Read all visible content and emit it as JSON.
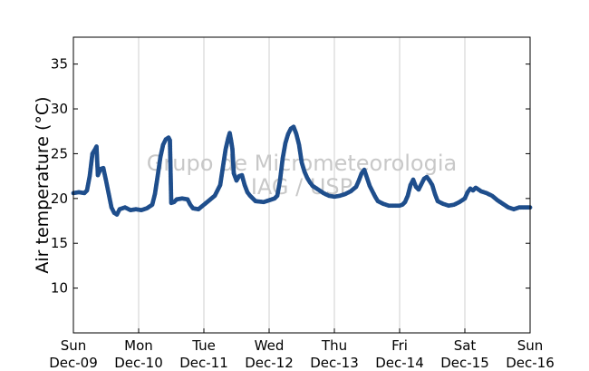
{
  "chart_data": {
    "type": "scatter",
    "ylabel": "Air temperature (°C)",
    "ylim": [
      5,
      38
    ],
    "yticks": [
      10,
      15,
      20,
      25,
      30,
      35
    ],
    "xlim": [
      "2012-12-09",
      "2012-12-16"
    ],
    "xticks": [
      {
        "date": "2012-12-09",
        "day": "Sun",
        "label": "Dec-09"
      },
      {
        "date": "2012-12-10",
        "day": "Mon",
        "label": "Dec-10"
      },
      {
        "date": "2012-12-11",
        "day": "Tue",
        "label": "Dec-11"
      },
      {
        "date": "2012-12-12",
        "day": "Wed",
        "label": "Dec-12"
      },
      {
        "date": "2012-12-13",
        "day": "Thu",
        "label": "Dec-13"
      },
      {
        "date": "2012-12-14",
        "day": "Fri",
        "label": "Dec-14"
      },
      {
        "date": "2012-12-15",
        "day": "Sat",
        "label": "Dec-15"
      },
      {
        "date": "2012-12-16",
        "day": "Sun",
        "label": "Dec-16"
      }
    ],
    "grid": "vertical",
    "marker_color": "#1f4e8c",
    "watermark": [
      "Grupo de Micrometeorologia",
      "IAG / USP"
    ],
    "series": [
      {
        "values": [
          [
            "2012-12-09 00:00",
            20.6
          ],
          [
            "2012-12-09 02:00",
            20.7
          ],
          [
            "2012-12-09 04:00",
            20.6
          ],
          [
            "2012-12-09 05:00",
            20.9
          ],
          [
            "2012-12-09 06:00",
            22.5
          ],
          [
            "2012-12-09 07:00",
            25.0
          ],
          [
            "2012-12-09 08:00",
            25.5
          ],
          [
            "2012-12-09 08:30",
            25.8
          ],
          [
            "2012-12-09 09:00",
            22.6
          ],
          [
            "2012-12-09 10:00",
            23.3
          ],
          [
            "2012-12-09 11:00",
            23.4
          ],
          [
            "2012-12-09 12:00",
            22.0
          ],
          [
            "2012-12-09 13:00",
            20.5
          ],
          [
            "2012-12-09 14:00",
            19.0
          ],
          [
            "2012-12-09 15:00",
            18.4
          ],
          [
            "2012-12-09 16:00",
            18.2
          ],
          [
            "2012-12-09 17:00",
            18.8
          ],
          [
            "2012-12-09 19:00",
            19.0
          ],
          [
            "2012-12-09 21:00",
            18.7
          ],
          [
            "2012-12-09 23:00",
            18.8
          ],
          [
            "2012-12-10 01:00",
            18.7
          ],
          [
            "2012-12-10 03:00",
            18.9
          ],
          [
            "2012-12-10 05:00",
            19.3
          ],
          [
            "2012-12-10 06:00",
            20.5
          ],
          [
            "2012-12-10 07:00",
            22.5
          ],
          [
            "2012-12-10 08:00",
            24.6
          ],
          [
            "2012-12-10 09:00",
            26.0
          ],
          [
            "2012-12-10 10:00",
            26.6
          ],
          [
            "2012-12-10 11:00",
            26.8
          ],
          [
            "2012-12-10 11:30",
            26.5
          ],
          [
            "2012-12-10 12:00",
            19.5
          ],
          [
            "2012-12-10 13:00",
            19.6
          ],
          [
            "2012-12-10 14:00",
            19.9
          ],
          [
            "2012-12-10 16:00",
            20.0
          ],
          [
            "2012-12-10 18:00",
            19.9
          ],
          [
            "2012-12-10 19:00",
            19.3
          ],
          [
            "2012-12-10 20:00",
            18.9
          ],
          [
            "2012-12-10 22:00",
            18.8
          ],
          [
            "2012-12-11 00:00",
            19.3
          ],
          [
            "2012-12-11 02:00",
            19.8
          ],
          [
            "2012-12-11 04:00",
            20.3
          ],
          [
            "2012-12-11 06:00",
            21.5
          ],
          [
            "2012-12-11 07:00",
            23.5
          ],
          [
            "2012-12-11 08:00",
            25.5
          ],
          [
            "2012-12-11 09:00",
            26.8
          ],
          [
            "2012-12-11 09:30",
            27.3
          ],
          [
            "2012-12-11 10:00",
            26.5
          ],
          [
            "2012-12-11 10:30",
            25.5
          ],
          [
            "2012-12-11 11:00",
            22.8
          ],
          [
            "2012-12-11 12:00",
            22.0
          ],
          [
            "2012-12-11 13:00",
            22.5
          ],
          [
            "2012-12-11 14:00",
            22.6
          ],
          [
            "2012-12-11 15:00",
            21.5
          ],
          [
            "2012-12-11 16:00",
            20.7
          ],
          [
            "2012-12-11 17:00",
            20.3
          ],
          [
            "2012-12-11 18:00",
            20.0
          ],
          [
            "2012-12-11 19:00",
            19.7
          ],
          [
            "2012-12-11 22:00",
            19.6
          ],
          [
            "2012-12-12 00:00",
            19.8
          ],
          [
            "2012-12-12 02:00",
            20.0
          ],
          [
            "2012-12-12 03:00",
            20.3
          ],
          [
            "2012-12-12 04:00",
            22.0
          ],
          [
            "2012-12-12 05:00",
            24.5
          ],
          [
            "2012-12-12 06:00",
            26.2
          ],
          [
            "2012-12-12 07:00",
            27.2
          ],
          [
            "2012-12-12 08:00",
            27.8
          ],
          [
            "2012-12-12 09:00",
            28.0
          ],
          [
            "2012-12-12 10:00",
            27.2
          ],
          [
            "2012-12-12 11:00",
            26.0
          ],
          [
            "2012-12-12 12:00",
            24.0
          ],
          [
            "2012-12-12 13:00",
            23.0
          ],
          [
            "2012-12-12 14:00",
            22.3
          ],
          [
            "2012-12-12 15:00",
            21.8
          ],
          [
            "2012-12-12 16:00",
            21.4
          ],
          [
            "2012-12-12 18:00",
            21.0
          ],
          [
            "2012-12-12 20:00",
            20.6
          ],
          [
            "2012-12-12 22:00",
            20.3
          ],
          [
            "2012-12-13 00:00",
            20.2
          ],
          [
            "2012-12-13 02:00",
            20.3
          ],
          [
            "2012-12-13 04:00",
            20.5
          ],
          [
            "2012-12-13 06:00",
            20.8
          ],
          [
            "2012-12-13 08:00",
            21.3
          ],
          [
            "2012-12-13 09:00",
            22.0
          ],
          [
            "2012-12-13 10:00",
            22.8
          ],
          [
            "2012-12-13 11:00",
            23.2
          ],
          [
            "2012-12-13 12:00",
            22.3
          ],
          [
            "2012-12-13 13:00",
            21.4
          ],
          [
            "2012-12-13 14:00",
            20.8
          ],
          [
            "2012-12-13 15:00",
            20.2
          ],
          [
            "2012-12-13 16:00",
            19.7
          ],
          [
            "2012-12-13 18:00",
            19.4
          ],
          [
            "2012-12-13 20:00",
            19.2
          ],
          [
            "2012-12-13 22:00",
            19.2
          ],
          [
            "2012-12-14 00:00",
            19.2
          ],
          [
            "2012-12-14 01:00",
            19.3
          ],
          [
            "2012-12-14 02:00",
            19.6
          ],
          [
            "2012-12-14 03:00",
            20.3
          ],
          [
            "2012-12-14 04:00",
            21.5
          ],
          [
            "2012-12-14 05:00",
            22.1
          ],
          [
            "2012-12-14 06:00",
            21.3
          ],
          [
            "2012-12-14 07:00",
            21.0
          ],
          [
            "2012-12-14 08:00",
            21.6
          ],
          [
            "2012-12-14 09:00",
            22.2
          ],
          [
            "2012-12-14 10:00",
            22.4
          ],
          [
            "2012-12-14 11:00",
            22.0
          ],
          [
            "2012-12-14 12:00",
            21.5
          ],
          [
            "2012-12-14 13:00",
            20.5
          ],
          [
            "2012-12-14 14:00",
            19.7
          ],
          [
            "2012-12-14 16:00",
            19.4
          ],
          [
            "2012-12-14 18:00",
            19.2
          ],
          [
            "2012-12-14 20:00",
            19.3
          ],
          [
            "2012-12-14 22:00",
            19.6
          ],
          [
            "2012-12-15 00:00",
            20.0
          ],
          [
            "2012-12-15 01:00",
            20.7
          ],
          [
            "2012-12-15 02:00",
            21.1
          ],
          [
            "2012-12-15 03:00",
            20.9
          ],
          [
            "2012-12-15 04:00",
            21.2
          ],
          [
            "2012-12-15 05:00",
            21.0
          ],
          [
            "2012-12-15 06:00",
            20.8
          ],
          [
            "2012-12-15 08:00",
            20.6
          ],
          [
            "2012-12-15 10:00",
            20.3
          ],
          [
            "2012-12-15 12:00",
            19.8
          ],
          [
            "2012-12-15 14:00",
            19.4
          ],
          [
            "2012-12-15 16:00",
            19.0
          ],
          [
            "2012-12-15 18:00",
            18.8
          ],
          [
            "2012-12-15 20:00",
            19.0
          ],
          [
            "2012-12-15 22:00",
            19.0
          ],
          [
            "2012-12-16 00:00",
            19.0
          ]
        ]
      }
    ]
  }
}
